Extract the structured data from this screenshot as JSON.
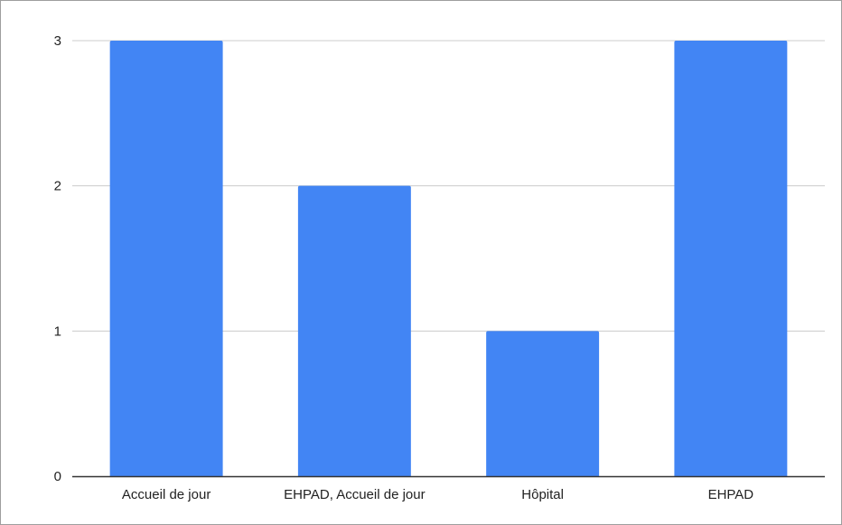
{
  "chart_data": {
    "type": "bar",
    "title": "",
    "xlabel": "",
    "ylabel": "",
    "categories": [
      "Accueil de jour",
      "EHPAD, Accueil de jour",
      "Hôpital",
      "EHPAD"
    ],
    "values": [
      3,
      2,
      1,
      3
    ],
    "ylim": [
      0,
      3
    ],
    "yticks": [
      "0",
      "1",
      "2",
      "3"
    ],
    "grid": true,
    "legend": "none",
    "bar_color": "#4285f4",
    "grid_color": "#cccccc",
    "axis_color": "#333333"
  }
}
